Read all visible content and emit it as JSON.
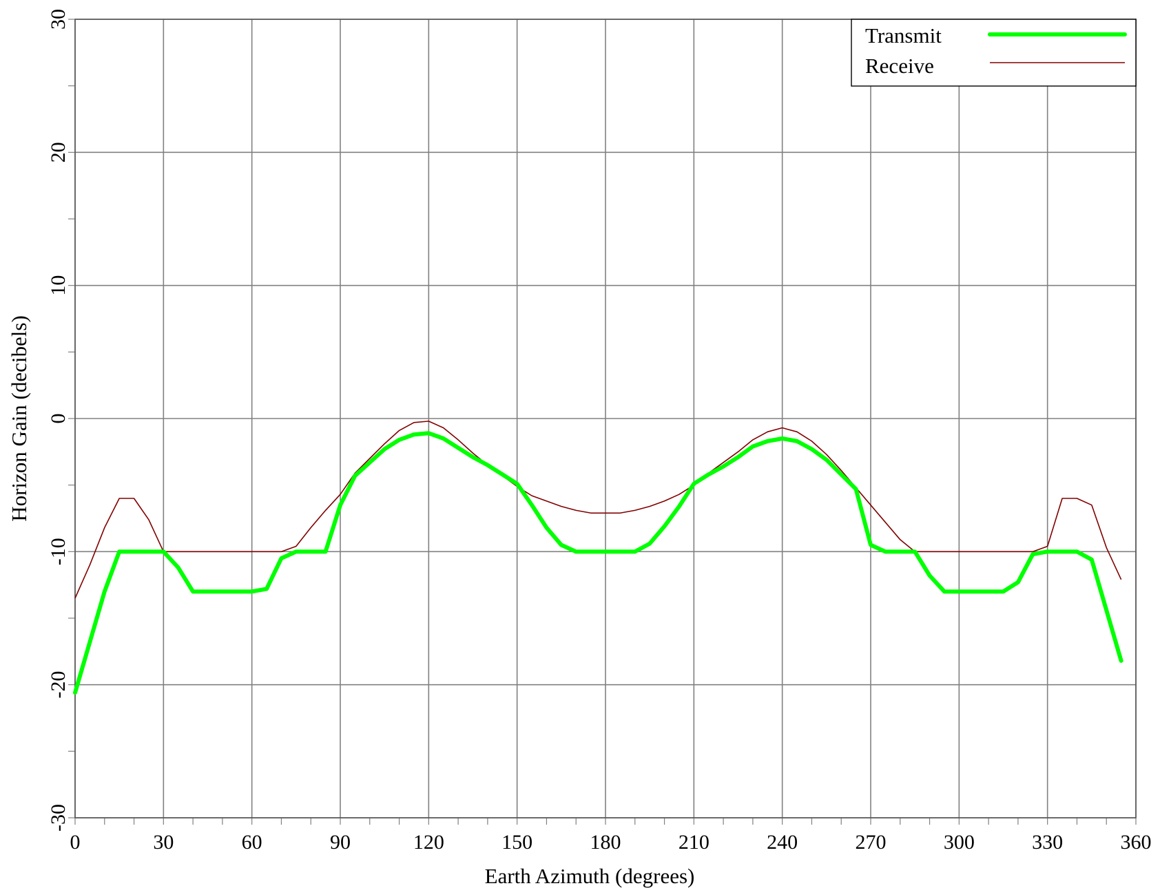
{
  "chart_data": {
    "type": "line",
    "title": "",
    "xlabel": "Earth Azimuth (degrees)",
    "ylabel": "Horizon Gain (decibels)",
    "xlim": [
      0,
      360
    ],
    "ylim": [
      -30,
      30
    ],
    "xticks": [
      0,
      30,
      60,
      90,
      120,
      150,
      180,
      210,
      240,
      270,
      300,
      330,
      360
    ],
    "yticks": [
      -30,
      -20,
      -10,
      0,
      10,
      20,
      30
    ],
    "xtick_labels": [
      "0",
      "30",
      "60",
      "90",
      "120",
      "150",
      "180",
      "210",
      "240",
      "270",
      "300",
      "330",
      "360"
    ],
    "ytick_labels": [
      "-30",
      "-20",
      "-10",
      "0",
      "10",
      "20",
      "30"
    ],
    "grid": true,
    "legend_position": "top-right",
    "series": [
      {
        "name": "Transmit",
        "color": "#00ff00",
        "style": "thick",
        "x": [
          0,
          5,
          10,
          15,
          20,
          25,
          30,
          35,
          40,
          45,
          50,
          55,
          60,
          65,
          70,
          75,
          80,
          85,
          90,
          95,
          100,
          105,
          110,
          115,
          120,
          125,
          130,
          135,
          140,
          145,
          150,
          155,
          160,
          165,
          170,
          175,
          180,
          185,
          190,
          195,
          200,
          205,
          210,
          215,
          220,
          225,
          230,
          235,
          240,
          245,
          250,
          255,
          260,
          265,
          270,
          275,
          280,
          285,
          290,
          295,
          300,
          305,
          310,
          315,
          320,
          325,
          330,
          335,
          340,
          345,
          350,
          355
        ],
        "values": [
          -20.6,
          -16.8,
          -13.0,
          -10.0,
          -10.0,
          -10.0,
          -10.0,
          -11.2,
          -13.0,
          -13.0,
          -13.0,
          -13.0,
          -13.0,
          -12.8,
          -10.5,
          -10.0,
          -10.0,
          -10.0,
          -6.5,
          -4.3,
          -3.3,
          -2.3,
          -1.6,
          -1.2,
          -1.1,
          -1.5,
          -2.2,
          -2.9,
          -3.5,
          -4.2,
          -4.9,
          -6.5,
          -8.2,
          -9.5,
          -10.0,
          -10.0,
          -10.0,
          -10.0,
          -10.0,
          -9.4,
          -8.1,
          -6.6,
          -4.9,
          -4.2,
          -3.6,
          -2.9,
          -2.1,
          -1.7,
          -1.5,
          -1.7,
          -2.3,
          -3.1,
          -4.2,
          -5.3,
          -9.5,
          -10.0,
          -10.0,
          -10.0,
          -11.8,
          -13.0,
          -13.0,
          -13.0,
          -13.0,
          -13.0,
          -12.3,
          -10.2,
          -10.0,
          -10.0,
          -10.0,
          -10.6,
          -14.4,
          -18.2
        ]
      },
      {
        "name": "Receive",
        "color": "#800000",
        "style": "thin",
        "x": [
          0,
          5,
          10,
          15,
          20,
          25,
          30,
          35,
          40,
          45,
          50,
          55,
          60,
          65,
          70,
          75,
          80,
          85,
          90,
          95,
          100,
          105,
          110,
          115,
          120,
          125,
          130,
          135,
          140,
          145,
          150,
          155,
          160,
          165,
          170,
          175,
          180,
          185,
          190,
          195,
          200,
          205,
          210,
          215,
          220,
          225,
          230,
          235,
          240,
          245,
          250,
          255,
          260,
          265,
          270,
          275,
          280,
          285,
          290,
          295,
          300,
          305,
          310,
          315,
          320,
          325,
          330,
          335,
          340,
          345,
          350,
          355
        ],
        "values": [
          -13.5,
          -11.0,
          -8.2,
          -6.0,
          -6.0,
          -7.6,
          -10.0,
          -10.0,
          -10.0,
          -10.0,
          -10.0,
          -10.0,
          -10.0,
          -10.0,
          -10.0,
          -9.6,
          -8.2,
          -6.9,
          -5.7,
          -4.1,
          -3.0,
          -1.9,
          -0.9,
          -0.3,
          -0.2,
          -0.7,
          -1.6,
          -2.6,
          -3.5,
          -4.3,
          -5.1,
          -5.8,
          -6.2,
          -6.6,
          -6.9,
          -7.1,
          -7.1,
          -7.1,
          -6.9,
          -6.6,
          -6.2,
          -5.7,
          -5.0,
          -4.1,
          -3.3,
          -2.5,
          -1.6,
          -1.0,
          -0.7,
          -1.0,
          -1.7,
          -2.7,
          -3.9,
          -5.2,
          -6.5,
          -7.8,
          -9.1,
          -10.0,
          -10.0,
          -10.0,
          -10.0,
          -10.0,
          -10.0,
          -10.0,
          -10.0,
          -10.0,
          -9.6,
          -6.0,
          -6.0,
          -6.5,
          -9.7,
          -12.1
        ]
      }
    ]
  }
}
